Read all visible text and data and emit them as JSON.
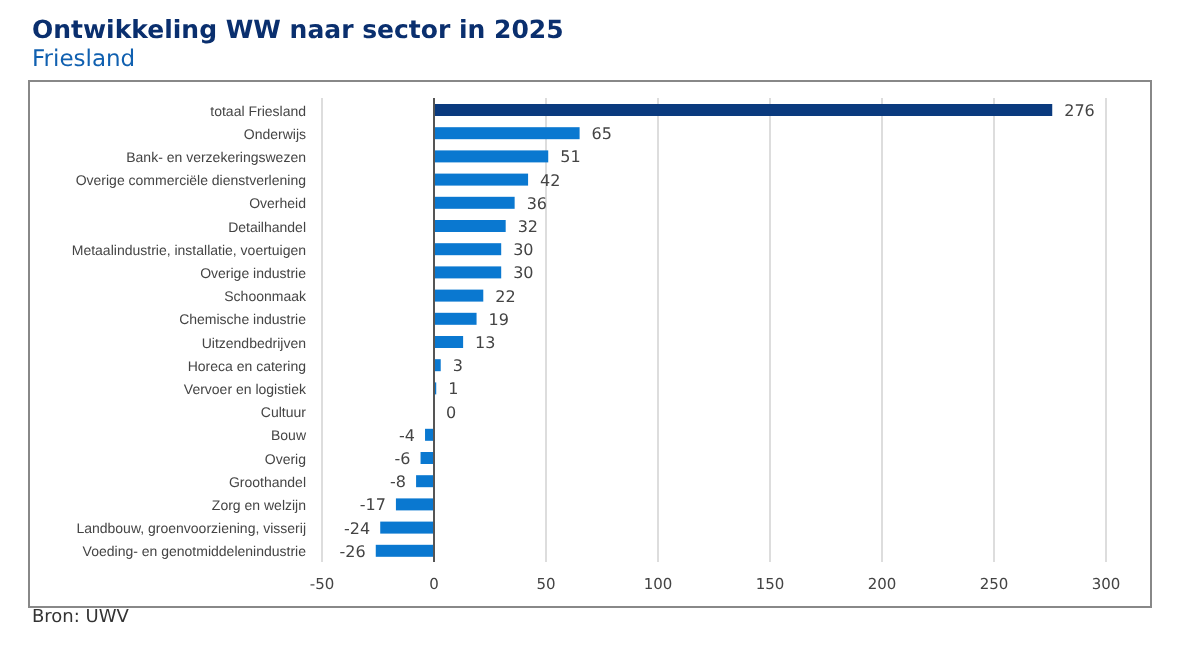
{
  "chart_data": {
    "type": "bar",
    "orientation": "horizontal",
    "title": "Ontwikkeling WW naar sector in 2025",
    "subtitle": "Friesland",
    "categories": [
      "totaal Friesland",
      "Onderwijs",
      "Bank- en verzekeringswezen",
      "Overige commerciële dienstverlening",
      "Overheid",
      "Detailhandel",
      "Metaalindustrie, installatie, voertuigen",
      "Overige industrie",
      "Schoonmaak",
      "Chemische industrie",
      "Uitzendbedrijven",
      "Horeca en catering",
      "Vervoer en logistiek",
      "Cultuur",
      "Bouw",
      "Overig",
      "Groothandel",
      "Zorg en welzijn",
      "Landbouw, groenvoorziening, visserij",
      "Voeding- en genotmiddelenindustrie"
    ],
    "values": [
      276,
      65,
      51,
      42,
      36,
      32,
      30,
      30,
      22,
      19,
      13,
      3,
      1,
      0,
      -4,
      -6,
      -8,
      -17,
      -24,
      -26
    ],
    "colors": [
      "#0a3a7e",
      "#0a78d0",
      "#0a78d0",
      "#0a78d0",
      "#0a78d0",
      "#0a78d0",
      "#0a78d0",
      "#0a78d0",
      "#0a78d0",
      "#0a78d0",
      "#0a78d0",
      "#0a78d0",
      "#0a78d0",
      "#0a78d0",
      "#0a78d0",
      "#0a78d0",
      "#0a78d0",
      "#0a78d0",
      "#0a78d0",
      "#0a78d0"
    ],
    "xlim": [
      -50,
      300
    ],
    "xticks": [
      -50,
      0,
      50,
      100,
      150,
      200,
      250,
      300
    ],
    "grid": "x",
    "data_labels": true,
    "annotations": [
      "Bron: UWV"
    ]
  }
}
